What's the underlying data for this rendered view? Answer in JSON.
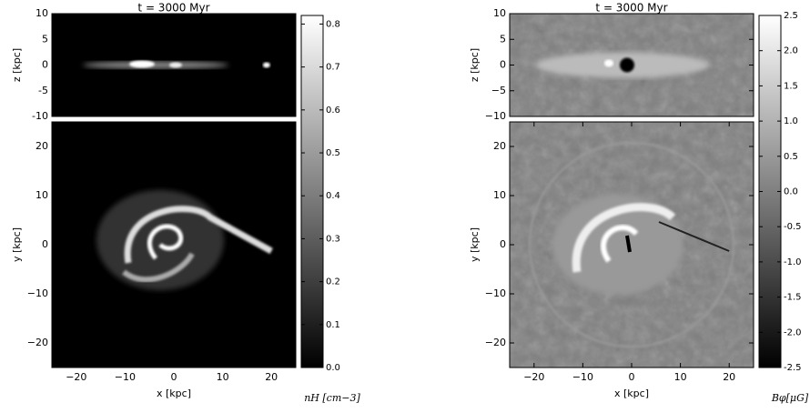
{
  "chart_data": [
    {
      "type": "image",
      "title": "t = 3000 Myr",
      "colormap": "gray",
      "top": {
        "ylabel": "z [kpc]",
        "xlim": [
          -25,
          25
        ],
        "ylim": [
          -10,
          10
        ],
        "yticks": [
          -10,
          -5,
          0,
          5,
          10
        ]
      },
      "bottom": {
        "xlabel": "x [kpc]",
        "ylabel": "y [kpc]",
        "xlim": [
          -25,
          25
        ],
        "ylim": [
          -25,
          25
        ],
        "xticks": [
          {
            "value": -20,
            "label": "−20"
          },
          {
            "value": -10,
            "label": "−10"
          },
          0,
          10,
          20
        ],
        "yticks": [
          {
            "value": -20,
            "label": "−20"
          },
          {
            "value": -10,
            "label": "−10"
          },
          0,
          10,
          20
        ]
      },
      "colorbar": {
        "label": "nH [cm−3]",
        "lim": [
          0,
          0.82
        ],
        "ticks": [
          {
            "value": 0,
            "label": "0.0"
          },
          0.1,
          0.2,
          0.3,
          0.4,
          0.5,
          0.6,
          0.7,
          0.8
        ]
      }
    },
    {
      "type": "image",
      "title": "t = 3000 Myr",
      "colormap": "gray",
      "top": {
        "ylabel": "z [kpc]",
        "xlim": [
          -25,
          25
        ],
        "ylim": [
          -10,
          10
        ],
        "yticks": [
          {
            "value": -10,
            "label": "−10"
          },
          {
            "value": -5,
            "label": "−5"
          },
          0,
          5,
          10
        ]
      },
      "bottom": {
        "xlabel": "x [kpc]",
        "ylabel": "y [kpc]",
        "xlim": [
          -25,
          25
        ],
        "ylim": [
          -25,
          25
        ],
        "xticks": [
          {
            "value": -20,
            "label": "−20"
          },
          {
            "value": -10,
            "label": "−10"
          },
          0,
          10,
          20
        ],
        "yticks": [
          {
            "value": -20,
            "label": "−20"
          },
          {
            "value": -10,
            "label": "−10"
          },
          0,
          10,
          20
        ]
      },
      "colorbar": {
        "label": "Bφ[μG]",
        "lim": [
          -2.5,
          2.5
        ],
        "ticks": [
          -2.5,
          {
            "value": -2,
            "label": "-2.0"
          },
          -1.5,
          {
            "value": -1,
            "label": "-1.0"
          },
          -0.5,
          {
            "value": 0,
            "label": "0.0"
          },
          0.5,
          {
            "value": 1,
            "label": "1.0"
          },
          1.5,
          {
            "value": 2,
            "label": "2.0"
          },
          2.5
        ]
      }
    }
  ]
}
